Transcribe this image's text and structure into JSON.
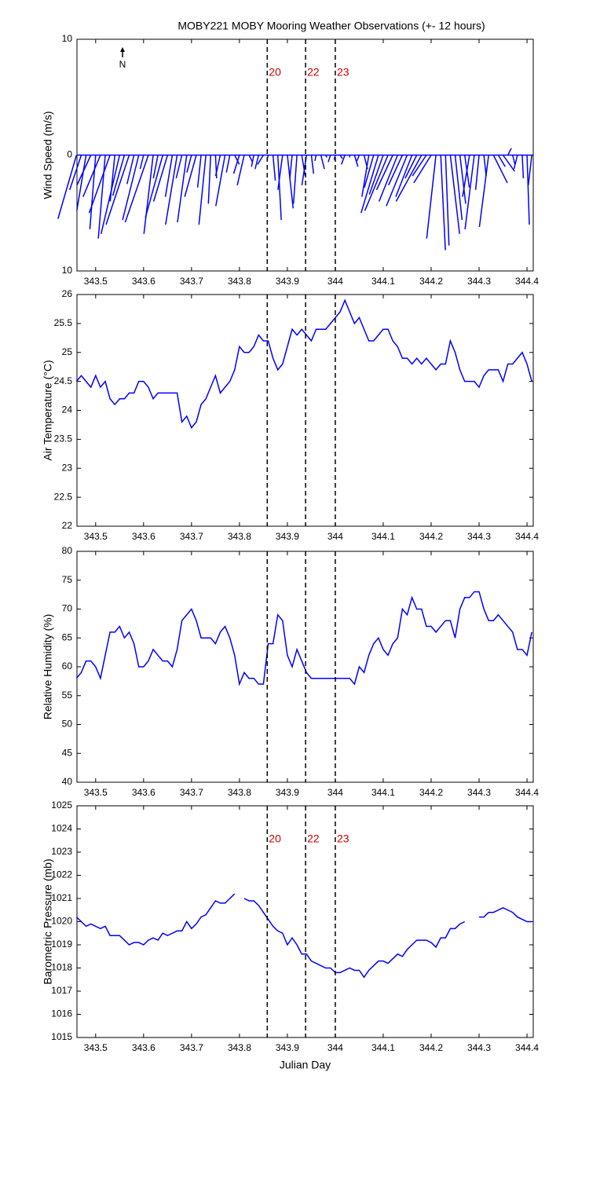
{
  "chart_data": [
    {
      "type": "feather",
      "title": "MOBY221 MOBY Mooring Weather Observations (+- 12 hours)",
      "ylabel": "Wind Speed (m/s)",
      "north_label": "N",
      "color": "#0000ff",
      "x": [
        343.46,
        343.47,
        343.48,
        343.49,
        343.5,
        343.51,
        343.52,
        343.53,
        343.54,
        343.55,
        343.56,
        343.57,
        343.58,
        343.59,
        343.6,
        343.61,
        343.62,
        343.63,
        343.64,
        343.65,
        343.66,
        343.67,
        343.68,
        343.69,
        343.7,
        343.71,
        343.72,
        343.73,
        343.74,
        343.75,
        343.76,
        343.77,
        343.78,
        343.79,
        343.8,
        343.81,
        343.82,
        343.83,
        343.84,
        343.85,
        343.86,
        343.87,
        343.88,
        343.89,
        343.9,
        343.91,
        343.92,
        343.93,
        343.94,
        343.95,
        343.96,
        343.97,
        343.98,
        343.99,
        344.0,
        344.01,
        344.02,
        344.03,
        344.04,
        344.05,
        344.06,
        344.07,
        344.08,
        344.09,
        344.1,
        344.11,
        344.12,
        344.13,
        344.14,
        344.15,
        344.16,
        344.17,
        344.18,
        344.19,
        344.2,
        344.21,
        344.22,
        344.23,
        344.24,
        344.25,
        344.26,
        344.27,
        344.28,
        344.29,
        344.3,
        344.31,
        344.32,
        344.33,
        344.34,
        344.35,
        344.36,
        344.37,
        344.38,
        344.39,
        344.4,
        344.41
      ],
      "u": [
        -1.6,
        -1.0,
        -0.8,
        -1.2,
        -0.5,
        -1.5,
        -0.6,
        -1.8,
        -0.4,
        -1.6,
        -1.0,
        -2.0,
        -0.6,
        -1.4,
        -0.3,
        -2.0,
        -0.8,
        -0.4,
        -1.5,
        -1.2,
        -0.6,
        -1.0,
        -0.5,
        -0.8,
        -0.4,
        -1.0,
        -0.3,
        -0.6,
        -0.2,
        0.1,
        -0.4,
        -0.8,
        -0.3,
        0.4,
        -0.5,
        -0.6,
        0.3,
        -0.2,
        -0.3,
        -0.5,
        -0.1,
        0.2,
        0.3,
        -0.4,
        0.5,
        -0.2,
        -0.3,
        0.3,
        -0.4,
        0.2,
        -0.1,
        0.3,
        0.1,
        -0.2,
        -0.1,
        0.2,
        -0.3,
        0.0,
        0.3,
        -0.2,
        0.3,
        -0.6,
        -0.8,
        -1.5,
        -1.2,
        -2.0,
        -1.4,
        -1.6,
        -1.2,
        -1.8,
        -1.4,
        -1.0,
        -2.2,
        -1.2,
        -1.5,
        -0.8,
        0.4,
        0.3,
        0.8,
        0.6,
        0.5,
        0.4,
        -0.6,
        -0.8,
        -0.3,
        0.2,
        -0.8,
        1.2,
        0.6,
        1.0,
        0.3,
        0.2,
        -0.3,
        0.1,
        0.2,
        -0.3
      ],
      "v": [
        -5.5,
        -3.0,
        -4.8,
        -2.6,
        -6.4,
        -3.6,
        -7.2,
        -5.0,
        -4.0,
        -6.8,
        -3.5,
        -6.0,
        -2.5,
        -5.6,
        -1.2,
        -5.8,
        -6.8,
        -2.0,
        -5.4,
        -4.0,
        -3.6,
        -6.0,
        -2.0,
        -5.8,
        -1.5,
        -3.6,
        -2.8,
        -6.0,
        -4.2,
        -2.0,
        -1.8,
        -4.4,
        -1.5,
        -0.8,
        -1.6,
        -2.6,
        -0.6,
        -1.0,
        -1.2,
        -0.8,
        -0.4,
        -2.2,
        -5.6,
        -3.0,
        -4.6,
        -2.0,
        -4.2,
        -1.8,
        -2.6,
        -1.6,
        -0.5,
        -1.2,
        -0.2,
        -0.6,
        -0.4,
        -0.3,
        -0.8,
        -0.2,
        -1.0,
        -0.5,
        -1.2,
        -3.6,
        -2.8,
        -5.0,
        -3.4,
        -4.8,
        -3.0,
        -4.0,
        -2.6,
        -4.4,
        -3.6,
        -2.0,
        -4.0,
        -1.8,
        -2.4,
        -7.2,
        -8.2,
        -7.8,
        -6.8,
        -5.6,
        -4.2,
        -2.8,
        -3.6,
        -6.4,
        -3.0,
        -1.8,
        -6.2,
        -2.4,
        -1.0,
        -1.4,
        0.6,
        -0.8,
        -1.2,
        -2.0,
        -6.0,
        -2.6
      ],
      "xlim": [
        343.461,
        344.413
      ],
      "xticks": [
        343.5,
        343.6,
        343.7,
        343.8,
        343.9,
        344,
        344.1,
        344.2,
        344.3,
        344.4
      ],
      "ylim": [
        -10,
        10
      ],
      "yticks": [
        {
          "value": -10,
          "label": "10"
        },
        0,
        10
      ],
      "event_color": "#cc0000",
      "events": [
        {
          "x": 343.858,
          "label": "20"
        },
        {
          "x": 343.938,
          "label": "22"
        },
        {
          "x": 344.0,
          "label": "23"
        }
      ]
    },
    {
      "type": "line",
      "ylabel": "Air Temperature (°C)",
      "color": "#0000ff",
      "x": [
        343.46,
        343.47,
        343.48,
        343.49,
        343.5,
        343.51,
        343.52,
        343.53,
        343.54,
        343.55,
        343.56,
        343.57,
        343.58,
        343.59,
        343.6,
        343.61,
        343.62,
        343.63,
        343.64,
        343.65,
        343.66,
        343.67,
        343.68,
        343.69,
        343.7,
        343.71,
        343.72,
        343.73,
        343.74,
        343.75,
        343.76,
        343.77,
        343.78,
        343.79,
        343.8,
        343.81,
        343.82,
        343.83,
        343.84,
        343.85,
        343.86,
        343.87,
        343.88,
        343.89,
        343.9,
        343.91,
        343.92,
        343.93,
        343.94,
        343.95,
        343.96,
        343.97,
        343.98,
        343.99,
        344.0,
        344.01,
        344.02,
        344.03,
        344.04,
        344.05,
        344.06,
        344.07,
        344.08,
        344.09,
        344.1,
        344.11,
        344.12,
        344.13,
        344.14,
        344.15,
        344.16,
        344.17,
        344.18,
        344.19,
        344.2,
        344.21,
        344.22,
        344.23,
        344.24,
        344.25,
        344.26,
        344.27,
        344.28,
        344.29,
        344.3,
        344.31,
        344.32,
        344.33,
        344.34,
        344.35,
        344.36,
        344.37,
        344.38,
        344.39,
        344.4,
        344.41
      ],
      "values": [
        24.5,
        24.6,
        24.5,
        24.4,
        24.6,
        24.4,
        24.5,
        24.2,
        24.1,
        24.2,
        24.2,
        24.3,
        24.3,
        24.5,
        24.5,
        24.4,
        24.2,
        24.3,
        24.3,
        24.3,
        24.3,
        24.3,
        23.8,
        23.9,
        23.7,
        23.8,
        24.1,
        24.2,
        24.4,
        24.6,
        24.3,
        24.4,
        24.5,
        24.7,
        25.1,
        25.0,
        25.0,
        25.1,
        25.3,
        25.2,
        25.2,
        24.9,
        24.7,
        24.8,
        25.1,
        25.4,
        25.3,
        25.4,
        25.3,
        25.2,
        25.4,
        25.4,
        25.4,
        25.5,
        25.6,
        25.7,
        25.9,
        25.7,
        25.5,
        25.6,
        25.4,
        25.2,
        25.2,
        25.3,
        25.4,
        25.4,
        25.2,
        25.1,
        24.9,
        24.9,
        24.8,
        24.9,
        24.8,
        24.9,
        24.8,
        24.7,
        24.8,
        24.8,
        25.2,
        25.0,
        24.7,
        24.5,
        24.5,
        24.5,
        24.4,
        24.6,
        24.7,
        24.7,
        24.7,
        24.5,
        24.8,
        24.8,
        24.9,
        25.0,
        24.8,
        24.5
      ],
      "xlim": [
        343.461,
        344.413
      ],
      "xticks": [
        343.5,
        343.6,
        343.7,
        343.8,
        343.9,
        344,
        344.1,
        344.2,
        344.3,
        344.4
      ],
      "ylim": [
        22,
        26
      ],
      "yticks": [
        22,
        22.5,
        23,
        23.5,
        24,
        24.5,
        25,
        25.5,
        26
      ],
      "event_color": "#000000",
      "events": [
        {
          "x": 343.858
        },
        {
          "x": 343.938
        },
        {
          "x": 344.0
        }
      ]
    },
    {
      "type": "line",
      "ylabel": "Relative Humidity (%)",
      "color": "#0000ff",
      "x": [
        343.46,
        343.47,
        343.48,
        343.49,
        343.5,
        343.51,
        343.52,
        343.53,
        343.54,
        343.55,
        343.56,
        343.57,
        343.58,
        343.59,
        343.6,
        343.61,
        343.62,
        343.63,
        343.64,
        343.65,
        343.66,
        343.67,
        343.68,
        343.69,
        343.7,
        343.71,
        343.72,
        343.73,
        343.74,
        343.75,
        343.76,
        343.77,
        343.78,
        343.79,
        343.8,
        343.81,
        343.82,
        343.83,
        343.84,
        343.85,
        343.86,
        343.87,
        343.88,
        343.89,
        343.9,
        343.91,
        343.92,
        343.93,
        343.94,
        343.95,
        343.96,
        343.97,
        343.98,
        343.99,
        344.0,
        344.01,
        344.02,
        344.03,
        344.04,
        344.05,
        344.06,
        344.07,
        344.08,
        344.09,
        344.1,
        344.11,
        344.12,
        344.13,
        344.14,
        344.15,
        344.16,
        344.17,
        344.18,
        344.19,
        344.2,
        344.21,
        344.22,
        344.23,
        344.24,
        344.25,
        344.26,
        344.27,
        344.28,
        344.29,
        344.3,
        344.31,
        344.32,
        344.33,
        344.34,
        344.35,
        344.36,
        344.37,
        344.38,
        344.39,
        344.4,
        344.41
      ],
      "values": [
        58,
        59,
        61,
        61,
        60,
        58,
        62,
        66,
        66,
        67,
        65,
        66,
        64,
        60,
        60,
        61,
        63,
        62,
        61,
        61,
        60,
        63,
        68,
        69,
        70,
        68,
        65,
        65,
        65,
        64,
        66,
        67,
        65,
        62,
        57,
        59,
        58,
        58,
        57,
        57,
        64,
        64,
        69,
        68,
        62,
        60,
        63,
        61,
        59,
        58,
        58,
        58,
        58,
        58,
        58,
        58,
        58,
        58,
        57,
        60,
        59,
        62,
        64,
        65,
        63,
        62,
        64,
        65,
        70,
        69,
        72,
        70,
        70,
        67,
        67,
        66,
        67,
        68,
        68,
        65,
        70,
        72,
        72,
        73,
        73,
        70,
        68,
        68,
        69,
        68,
        67,
        66,
        63,
        63,
        62,
        66
      ],
      "xlim": [
        343.461,
        344.413
      ],
      "xticks": [
        343.5,
        343.6,
        343.7,
        343.8,
        343.9,
        344,
        344.1,
        344.2,
        344.3,
        344.4
      ],
      "ylim": [
        40,
        80
      ],
      "yticks": [
        40,
        45,
        50,
        55,
        60,
        65,
        70,
        75,
        80
      ],
      "event_color": "#000000",
      "events": [
        {
          "x": 343.858
        },
        {
          "x": 343.938
        },
        {
          "x": 344.0
        }
      ]
    },
    {
      "type": "line",
      "ylabel": "Barometric Pressure (mb)",
      "xlabel": "Julian Day",
      "color": "#0000ff",
      "x": [
        343.46,
        343.47,
        343.48,
        343.49,
        343.5,
        343.51,
        343.52,
        343.53,
        343.54,
        343.55,
        343.56,
        343.57,
        343.58,
        343.59,
        343.6,
        343.61,
        343.62,
        343.63,
        343.64,
        343.65,
        343.66,
        343.67,
        343.68,
        343.69,
        343.7,
        343.71,
        343.72,
        343.73,
        343.74,
        343.75,
        343.76,
        343.77,
        343.78,
        343.79,
        343.8,
        343.81,
        343.82,
        343.83,
        343.84,
        343.85,
        343.86,
        343.87,
        343.88,
        343.89,
        343.9,
        343.91,
        343.92,
        343.93,
        343.94,
        343.95,
        343.96,
        343.97,
        343.98,
        343.99,
        344.0,
        344.01,
        344.02,
        344.03,
        344.04,
        344.05,
        344.06,
        344.07,
        344.08,
        344.09,
        344.1,
        344.11,
        344.12,
        344.13,
        344.14,
        344.15,
        344.16,
        344.17,
        344.18,
        344.19,
        344.2,
        344.21,
        344.22,
        344.23,
        344.24,
        344.25,
        344.26,
        344.27,
        344.28,
        344.29,
        344.3,
        344.31,
        344.32,
        344.33,
        344.34,
        344.35,
        344.36,
        344.37,
        344.38,
        344.39,
        344.4,
        344.41
      ],
      "values": [
        1020.2,
        1020.0,
        1019.8,
        1019.9,
        1019.8,
        1019.7,
        1019.8,
        1019.4,
        1019.4,
        1019.4,
        1019.2,
        1019.0,
        1019.1,
        1019.1,
        1019.0,
        1019.2,
        1019.3,
        1019.2,
        1019.5,
        1019.4,
        1019.5,
        1019.6,
        1019.6,
        1020.0,
        1019.7,
        1019.9,
        1020.2,
        1020.3,
        1020.6,
        1020.9,
        1020.8,
        1020.8,
        1021.0,
        1021.2,
        null,
        1021.0,
        1020.9,
        1020.9,
        1020.7,
        1020.4,
        1020.1,
        1019.8,
        1019.6,
        1019.5,
        1019.0,
        1019.3,
        1019.0,
        1018.6,
        1018.6,
        1018.3,
        1018.2,
        1018.1,
        1018.0,
        1018.0,
        1017.8,
        1017.8,
        1017.9,
        1018.0,
        1017.9,
        1017.9,
        1017.6,
        1017.9,
        1018.1,
        1018.3,
        1018.3,
        1018.2,
        1018.4,
        1018.6,
        1018.5,
        1018.8,
        1019.0,
        1019.2,
        1019.2,
        1019.2,
        1019.1,
        1018.9,
        1019.3,
        1019.3,
        1019.7,
        1019.7,
        1019.9,
        1020.0,
        null,
        null,
        1020.2,
        1020.2,
        1020.4,
        1020.4,
        1020.5,
        1020.6,
        1020.5,
        1020.4,
        1020.2,
        1020.1,
        1020.0,
        1020.0
      ],
      "xlim": [
        343.461,
        344.413
      ],
      "xticks": [
        343.5,
        343.6,
        343.7,
        343.8,
        343.9,
        344,
        344.1,
        344.2,
        344.3,
        344.4
      ],
      "ylim": [
        1015,
        1025
      ],
      "yticks": [
        1015,
        1016,
        1017,
        1018,
        1019,
        1020,
        1021,
        1022,
        1023,
        1024,
        1025
      ],
      "event_color": "#cc0000",
      "events": [
        {
          "x": 343.858,
          "label": "20"
        },
        {
          "x": 343.938,
          "label": "22"
        },
        {
          "x": 344.0,
          "label": "23"
        }
      ]
    }
  ]
}
